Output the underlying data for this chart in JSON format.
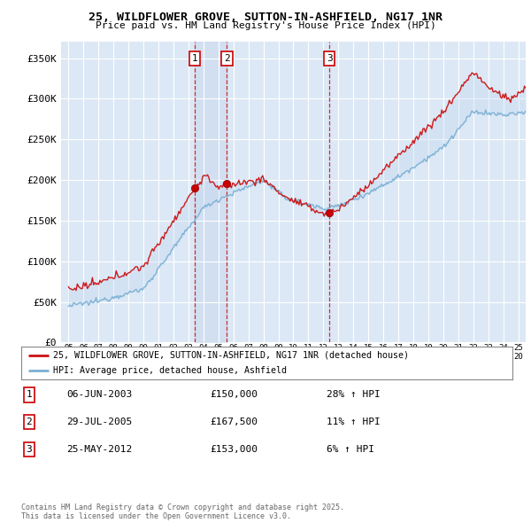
{
  "title": "25, WILDFLOWER GROVE, SUTTON-IN-ASHFIELD, NG17 1NR",
  "subtitle": "Price paid vs. HM Land Registry's House Price Index (HPI)",
  "bg_color": "#dce8f5",
  "red_line_label": "25, WILDFLOWER GROVE, SUTTON-IN-ASHFIELD, NG17 1NR (detached house)",
  "blue_line_label": "HPI: Average price, detached house, Ashfield",
  "footer": "Contains HM Land Registry data © Crown copyright and database right 2025.\nThis data is licensed under the Open Government Licence v3.0.",
  "sales": [
    {
      "num": 1,
      "date": "06-JUN-2003",
      "x_year": 2003.43,
      "price": 150000,
      "pct": "28% ↑ HPI"
    },
    {
      "num": 2,
      "date": "29-JUL-2005",
      "x_year": 2005.57,
      "price": 167500,
      "pct": "11% ↑ HPI"
    },
    {
      "num": 3,
      "date": "25-MAY-2012",
      "x_year": 2012.4,
      "price": 153000,
      "pct": "6% ↑ HPI"
    }
  ],
  "ylim": [
    0,
    370000
  ],
  "xlim": [
    1994.5,
    2025.5
  ],
  "yticks": [
    0,
    50000,
    100000,
    150000,
    200000,
    250000,
    300000,
    350000
  ],
  "ytick_labels": [
    "£0",
    "£50K",
    "£100K",
    "£150K",
    "£200K",
    "£250K",
    "£300K",
    "£350K"
  ]
}
